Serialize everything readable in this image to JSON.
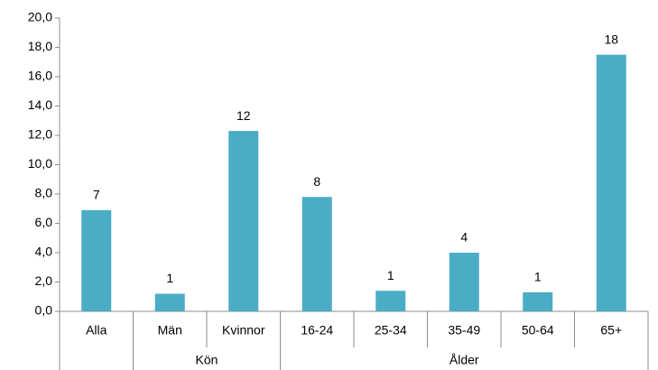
{
  "chart_data": {
    "type": "bar",
    "categories": [
      "Alla",
      "Män",
      "Kvinnor",
      "16-24",
      "25-34",
      "35-49",
      "50-64",
      "65+"
    ],
    "values": [
      6.9,
      1.2,
      12.3,
      7.8,
      1.4,
      4.0,
      1.3,
      17.5
    ],
    "value_labels": [
      "7",
      "1",
      "12",
      "8",
      "1",
      "4",
      "1",
      "18"
    ],
    "groups": [
      {
        "label": null,
        "size": 1
      },
      {
        "label": "Kön",
        "size": 2
      },
      {
        "label": "Ålder",
        "size": 5
      }
    ],
    "color": "#4bacc6",
    "ylim": [
      0,
      20
    ],
    "yticks": [
      {
        "value": 0,
        "label": "0,0"
      },
      {
        "value": 2,
        "label": "2,0"
      },
      {
        "value": 4,
        "label": "4,0"
      },
      {
        "value": 6,
        "label": "6,0"
      },
      {
        "value": 8,
        "label": "8,0"
      },
      {
        "value": 10,
        "label": "10,0"
      },
      {
        "value": 12,
        "label": "12,0"
      },
      {
        "value": 14,
        "label": "14,0"
      },
      {
        "value": 16,
        "label": "16,0"
      },
      {
        "value": 18,
        "label": "18,0"
      },
      {
        "value": 20,
        "label": "20,0"
      }
    ],
    "grid": false
  }
}
